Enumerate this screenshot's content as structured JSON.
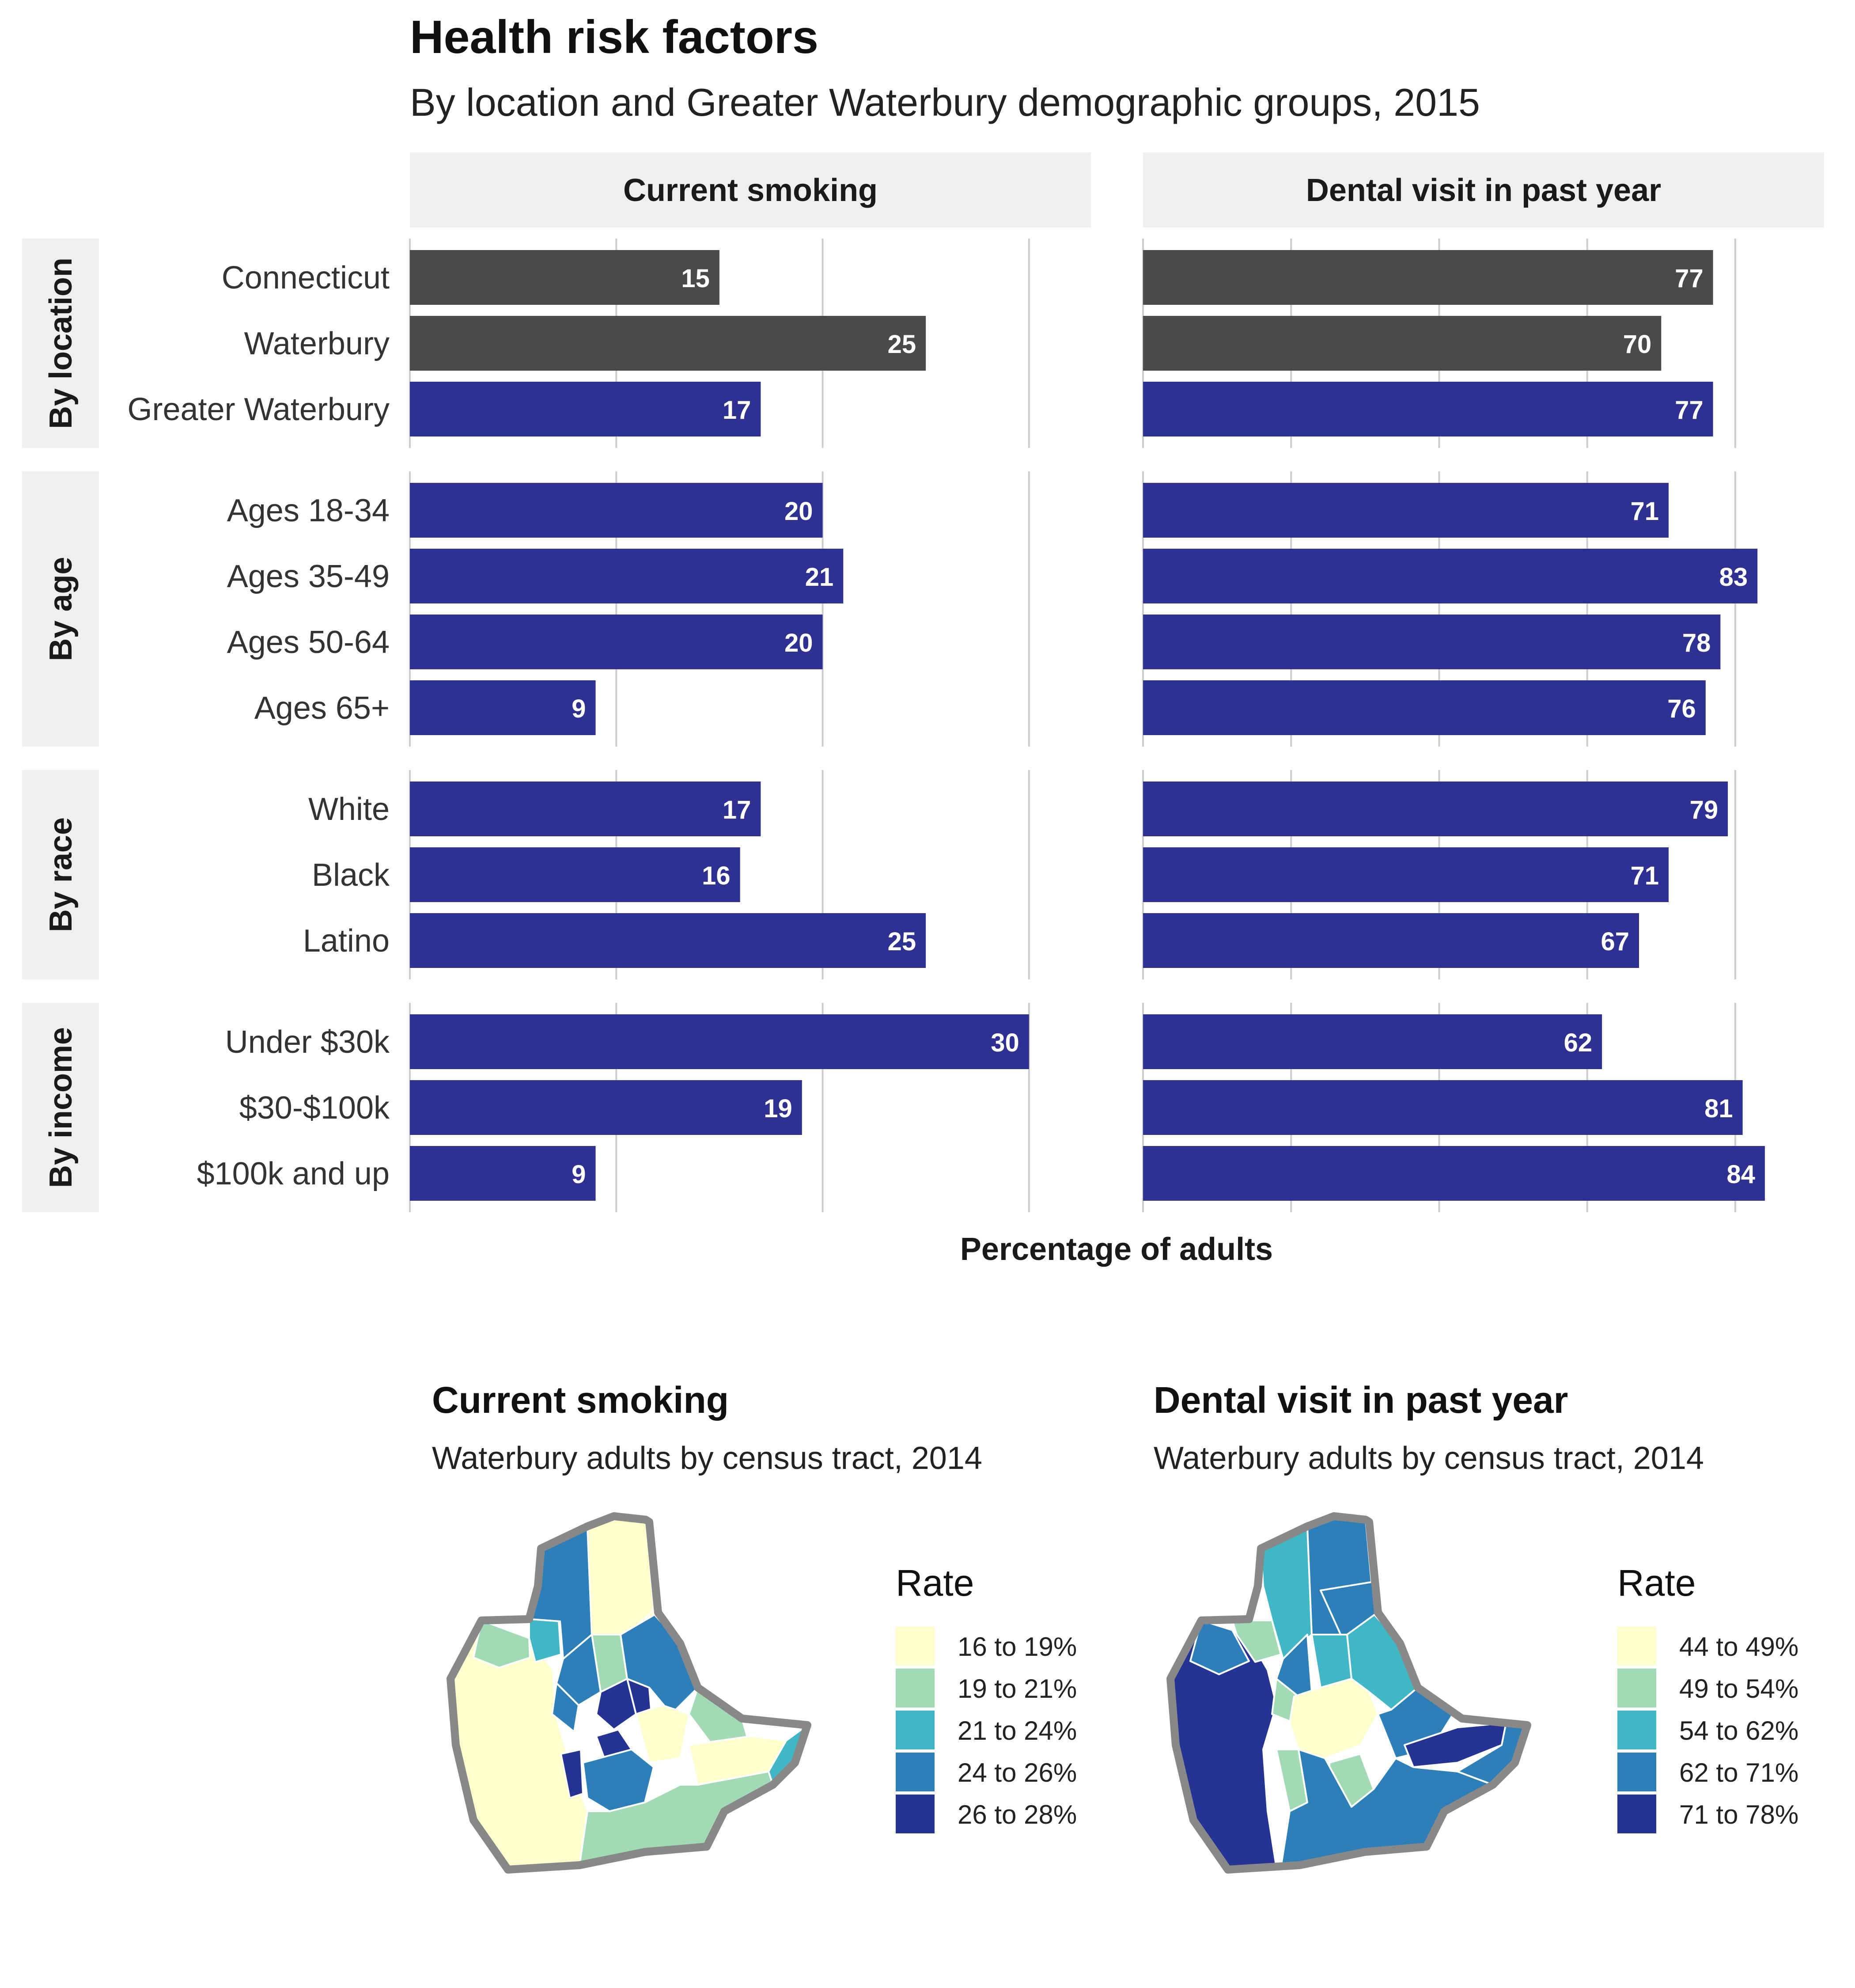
{
  "header": {
    "title": "Health risk factors",
    "subtitle": "By location and Greater Waterbury demographic groups, 2015"
  },
  "colors": {
    "dark_bar": "#4a4a4a",
    "blue_bar": "#2e3191",
    "strip_bg": "#efefef",
    "grid": "#cccccc"
  },
  "chart_data": [
    {
      "type": "bar",
      "orientation": "horizontal",
      "facets": [
        "Current smoking",
        "Dental visit in past year"
      ],
      "groups": [
        {
          "name": "By location",
          "categories": [
            "Connecticut",
            "Waterbury",
            "Greater Waterbury"
          ]
        },
        {
          "name": "By age",
          "categories": [
            "Ages 18-34",
            "Ages 35-49",
            "Ages 50-64",
            "Ages 65+"
          ]
        },
        {
          "name": "By race",
          "categories": [
            "White",
            "Black",
            "Latino"
          ]
        },
        {
          "name": "By income",
          "categories": [
            "Under $30k",
            "$30-$100k",
            "$100k and up"
          ]
        }
      ],
      "series": [
        {
          "facet": "Current smoking",
          "values": [
            15,
            25,
            17,
            20,
            21,
            20,
            9,
            17,
            16,
            25,
            30,
            19,
            9
          ]
        },
        {
          "facet": "Dental visit in past year",
          "values": [
            77,
            70,
            77,
            71,
            83,
            78,
            76,
            79,
            71,
            67,
            62,
            81,
            84
          ]
        }
      ],
      "highlight": {
        "Connecticut": "dark",
        "Waterbury": "dark"
      },
      "xlabel": "Percentage of adults",
      "xlim_smoking": [
        0,
        33
      ],
      "xlim_dental": [
        0,
        92
      ],
      "grid": true
    },
    {
      "type": "choropleth",
      "title": "Current smoking",
      "subtitle": "Waterbury adults by census tract, 2014",
      "legend_title": "Rate",
      "legend": [
        {
          "label": "16 to 19%",
          "color": "#ffffcc"
        },
        {
          "label": "19 to 21%",
          "color": "#a1dab4"
        },
        {
          "label": "21 to 24%",
          "color": "#41b6c4"
        },
        {
          "label": "24 to 26%",
          "color": "#2c7fb8"
        },
        {
          "label": "26 to 28%",
          "color": "#253494"
        }
      ]
    },
    {
      "type": "choropleth",
      "title": "Dental visit in past year",
      "subtitle": "Waterbury adults by census tract, 2014",
      "legend_title": "Rate",
      "legend": [
        {
          "label": "44 to 49%",
          "color": "#ffffcc"
        },
        {
          "label": "49 to 54%",
          "color": "#a1dab4"
        },
        {
          "label": "54 to 62%",
          "color": "#41b6c4"
        },
        {
          "label": "62 to 71%",
          "color": "#2c7fb8"
        },
        {
          "label": "71 to 78%",
          "color": "#253494"
        }
      ]
    }
  ]
}
